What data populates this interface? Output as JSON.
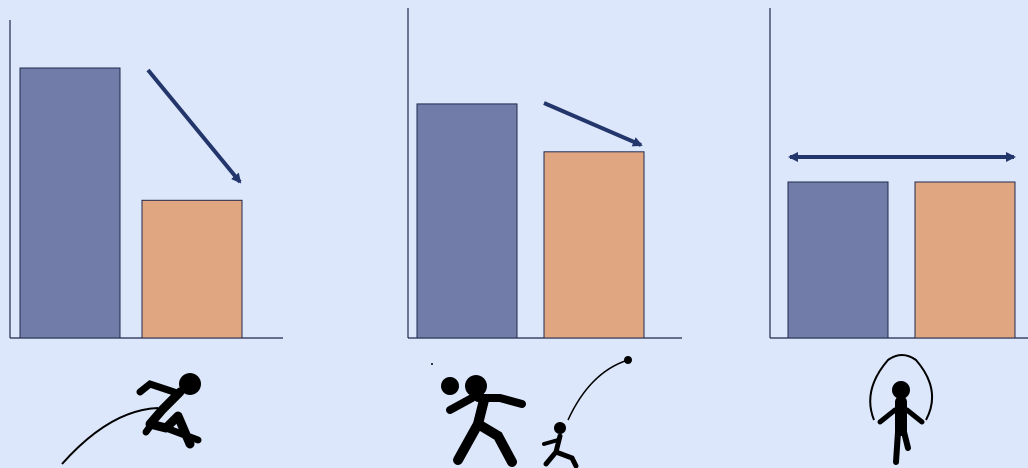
{
  "background": "#dde7fb",
  "colors": {
    "before": "#717ca8",
    "after": "#e0a581",
    "outline": "#1f2a4d",
    "axis": "#1f2a4d",
    "arrow": "#23366b",
    "icon": "#000000"
  },
  "chart_data": [
    {
      "type": "bar",
      "categories": [
        "",
        ""
      ],
      "values": [
        100,
        51
      ],
      "ylim": [
        0,
        100
      ],
      "grid": false,
      "trend": "decrease",
      "icon": "long-jump-icon"
    },
    {
      "type": "bar",
      "categories": [
        "",
        ""
      ],
      "values": [
        88,
        70
      ],
      "ylim": [
        0,
        100
      ],
      "grid": false,
      "trend": "decrease",
      "icon": "shot-put-icon"
    },
    {
      "type": "bar",
      "categories": [
        "",
        ""
      ],
      "values": [
        60,
        60
      ],
      "ylim": [
        0,
        100
      ],
      "grid": false,
      "trend": "no-change",
      "icon": "jump-rope-icon"
    }
  ]
}
